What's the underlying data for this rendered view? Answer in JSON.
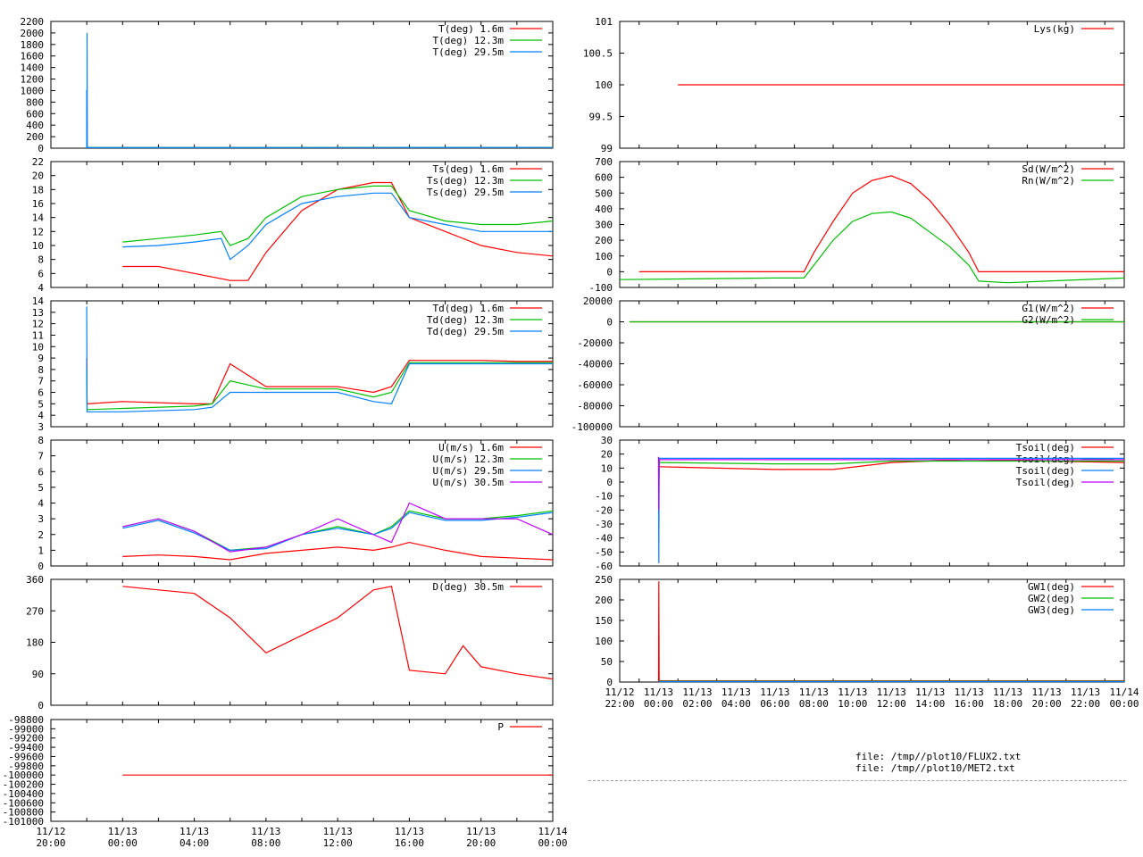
{
  "files": [
    "file: /tmp//plot10/FLUX2.txt",
    "file: /tmp//plot10/MET2.txt"
  ],
  "colors": {
    "red": "#ff0000",
    "green": "#00c000",
    "blue": "#0080ff",
    "purple": "#c000ff",
    "olive": "#a05000",
    "axis": "#000000"
  },
  "chart_data": [
    {
      "type": "line",
      "id": "T",
      "x_ticks": [
        "",
        "",
        "",
        "",
        "",
        "",
        ""
      ],
      "yticks": [
        "0",
        "200",
        "400",
        "600",
        "800",
        "1000",
        "1200",
        "1400",
        "1600",
        "1800",
        "2000",
        "2200"
      ],
      "ylim": [
        0,
        2200
      ],
      "xlim": [
        "11/12 20:00",
        "11/14 00:00"
      ],
      "series": [
        {
          "name": "T(deg)  1.6m",
          "color": "#ff0000",
          "x": [
            "11/12 22:00",
            "11/14 00:00"
          ],
          "values": [
            10,
            10
          ]
        },
        {
          "name": "T(deg) 12.3m",
          "color": "#00c000",
          "x": [
            "11/12 22:00",
            "11/14 00:00"
          ],
          "values": [
            12,
            12
          ]
        },
        {
          "name": "T(deg) 29.5m",
          "color": "#0080ff",
          "x": [
            "11/12 22:00",
            "11/12 22:00",
            "11/12 22:01",
            "11/12 22:01",
            "11/12 22:02",
            "11/14 00:00"
          ],
          "values": [
            0,
            1000,
            1000,
            2000,
            10,
            12
          ]
        }
      ]
    },
    {
      "type": "line",
      "id": "Ts",
      "yticks": [
        "4",
        "6",
        "8",
        "10",
        "12",
        "14",
        "16",
        "18",
        "20",
        "22"
      ],
      "ylim": [
        4,
        22
      ],
      "xlim": [
        "11/12 20:00",
        "11/14 00:00"
      ],
      "series": [
        {
          "name": "Ts(deg)  1.6m",
          "color": "#ff0000",
          "x": [
            "11/13 00:00",
            "11/13 02:00",
            "11/13 04:00",
            "11/13 06:00",
            "11/13 07:00",
            "11/13 08:00",
            "11/13 10:00",
            "11/13 12:00",
            "11/13 14:00",
            "11/13 15:00",
            "11/13 16:00",
            "11/13 18:00",
            "11/13 20:00",
            "11/13 22:00",
            "11/14 00:00"
          ],
          "values": [
            7,
            7,
            6,
            5,
            5,
            9,
            15,
            18,
            19,
            19,
            14,
            12,
            10,
            9,
            8.5
          ]
        },
        {
          "name": "Ts(deg) 12.3m",
          "color": "#00c000",
          "x": [
            "11/13 00:00",
            "11/13 02:00",
            "11/13 04:00",
            "11/13 05:30",
            "11/13 06:00",
            "11/13 07:00",
            "11/13 08:00",
            "11/13 10:00",
            "11/13 12:00",
            "11/13 14:00",
            "11/13 15:00",
            "11/13 16:00",
            "11/13 18:00",
            "11/13 20:00",
            "11/13 22:00",
            "11/14 00:00"
          ],
          "values": [
            10.5,
            11,
            11.5,
            12,
            10,
            11,
            14,
            17,
            18,
            18.5,
            18.5,
            15,
            13.5,
            13,
            13,
            13.5
          ]
        },
        {
          "name": "Ts(deg) 29.5m",
          "color": "#0080ff",
          "x": [
            "11/13 00:00",
            "11/13 02:00",
            "11/13 04:00",
            "11/13 05:30",
            "11/13 06:00",
            "11/13 07:00",
            "11/13 08:00",
            "11/13 10:00",
            "11/13 12:00",
            "11/13 14:00",
            "11/13 15:00",
            "11/13 16:00",
            "11/13 18:00",
            "11/13 20:00",
            "11/13 22:00",
            "11/14 00:00"
          ],
          "values": [
            9.8,
            10,
            10.5,
            11,
            8,
            10,
            13,
            16,
            17,
            17.5,
            17.5,
            14,
            13,
            12,
            12,
            12
          ]
        }
      ]
    },
    {
      "type": "line",
      "id": "Td",
      "yticks": [
        "3",
        "4",
        "5",
        "6",
        "7",
        "8",
        "9",
        "10",
        "11",
        "12",
        "13",
        "14"
      ],
      "ylim": [
        3,
        14
      ],
      "xlim": [
        "11/12 20:00",
        "11/14 00:00"
      ],
      "series": [
        {
          "name": "Td(deg)  1.6m",
          "color": "#ff0000",
          "x": [
            "11/12 22:00",
            "11/12 22:01",
            "11/13 00:00",
            "11/13 04:00",
            "11/13 05:00",
            "11/13 06:00",
            "11/13 08:00",
            "11/13 10:00",
            "11/13 12:00",
            "11/13 14:00",
            "11/13 15:00",
            "11/13 16:00",
            "11/13 18:00",
            "11/13 20:00",
            "11/13 22:00",
            "11/14 00:00"
          ],
          "values": [
            9,
            5,
            5.2,
            5,
            5,
            8.5,
            6.5,
            6.5,
            6.5,
            6,
            6.5,
            8.8,
            8.8,
            8.8,
            8.7,
            8.7
          ]
        },
        {
          "name": "Td(deg) 12.3m",
          "color": "#00c000",
          "x": [
            "11/12 22:00",
            "11/12 22:01",
            "11/13 00:00",
            "11/13 04:00",
            "11/13 05:00",
            "11/13 06:00",
            "11/13 08:00",
            "11/13 10:00",
            "11/13 12:00",
            "11/13 14:00",
            "11/13 15:00",
            "11/13 16:00",
            "11/13 18:00",
            "11/13 20:00",
            "11/13 22:00",
            "11/14 00:00"
          ],
          "values": [
            8,
            4.5,
            4.6,
            4.8,
            5,
            7,
            6.3,
            6.3,
            6.3,
            5.6,
            6,
            8.6,
            8.6,
            8.6,
            8.6,
            8.6
          ]
        },
        {
          "name": "Td(deg) 29.5m",
          "color": "#0080ff",
          "x": [
            "11/12 22:00",
            "11/12 22:01",
            "11/13 00:00",
            "11/13 04:00",
            "11/13 05:00",
            "11/13 06:00",
            "11/13 08:00",
            "11/13 10:00",
            "11/13 12:00",
            "11/13 14:00",
            "11/13 15:00",
            "11/13 16:00",
            "11/13 18:00",
            "11/13 20:00",
            "11/13 22:00",
            "11/14 00:00"
          ],
          "values": [
            13.5,
            4.3,
            4.3,
            4.5,
            4.7,
            6,
            6,
            6,
            6,
            5.2,
            5,
            8.5,
            8.5,
            8.5,
            8.5,
            8.5
          ]
        }
      ]
    },
    {
      "type": "line",
      "id": "U",
      "yticks": [
        "0",
        "1",
        "2",
        "3",
        "4",
        "5",
        "6",
        "7",
        "8"
      ],
      "ylim": [
        0,
        8
      ],
      "xlim": [
        "11/12 20:00",
        "11/14 00:00"
      ],
      "series": [
        {
          "name": "U(m/s)  1.6m",
          "color": "#ff0000",
          "x": [
            "11/13 00:00",
            "11/13 02:00",
            "11/13 04:00",
            "11/13 06:00",
            "11/13 08:00",
            "11/13 10:00",
            "11/13 12:00",
            "11/13 14:00",
            "11/13 15:00",
            "11/13 16:00",
            "11/13 18:00",
            "11/13 20:00",
            "11/13 22:00",
            "11/14 00:00"
          ],
          "values": [
            0.6,
            0.7,
            0.6,
            0.4,
            0.8,
            1.0,
            1.2,
            1.0,
            1.2,
            1.5,
            1.0,
            0.6,
            0.5,
            0.4
          ]
        },
        {
          "name": "U(m/s) 12.3m",
          "color": "#00c000",
          "x": [
            "11/13 00:00",
            "11/13 02:00",
            "11/13 04:00",
            "11/13 06:00",
            "11/13 08:00",
            "11/13 10:00",
            "11/13 12:00",
            "11/13 14:00",
            "11/13 15:00",
            "11/13 16:00",
            "11/13 18:00",
            "11/13 20:00",
            "11/13 22:00",
            "11/14 00:00"
          ],
          "values": [
            2.5,
            3.0,
            2.2,
            1.0,
            1.2,
            2.0,
            2.5,
            2.0,
            2.5,
            3.5,
            3.0,
            3.0,
            3.2,
            3.5
          ]
        },
        {
          "name": "U(m/s) 29.5m",
          "color": "#0080ff",
          "x": [
            "11/13 00:00",
            "11/13 02:00",
            "11/13 04:00",
            "11/13 06:00",
            "11/13 08:00",
            "11/13 10:00",
            "11/13 12:00",
            "11/13 14:00",
            "11/13 15:00",
            "11/13 16:00",
            "11/13 18:00",
            "11/13 20:00",
            "11/13 22:00",
            "11/14 00:00"
          ],
          "values": [
            2.4,
            2.9,
            2.1,
            1.0,
            1.1,
            2.0,
            2.4,
            2.0,
            2.4,
            3.4,
            2.9,
            2.9,
            3.1,
            3.4
          ]
        },
        {
          "name": "U(m/s) 30.5m",
          "color": "#c000ff",
          "x": [
            "11/13 00:00",
            "11/13 02:00",
            "11/13 04:00",
            "11/13 06:00",
            "11/13 08:00",
            "11/13 10:00",
            "11/13 12:00",
            "11/13 14:00",
            "11/13 15:00",
            "11/13 16:00",
            "11/13 18:00",
            "11/13 20:00",
            "11/13 22:00",
            "11/14 00:00"
          ],
          "values": [
            2.5,
            3.0,
            2.2,
            0.9,
            1.2,
            2.0,
            3.0,
            2.0,
            1.5,
            4.0,
            3.0,
            3.0,
            3.0,
            2.0
          ]
        }
      ]
    },
    {
      "type": "line",
      "id": "D",
      "yticks": [
        "0",
        "90",
        "180",
        "270",
        "360"
      ],
      "ylim": [
        0,
        360
      ],
      "xlim": [
        "11/12 20:00",
        "11/14 00:00"
      ],
      "series": [
        {
          "name": "D(deg)  30.5m",
          "color": "#ff0000",
          "x": [
            "11/13 00:00",
            "11/13 02:00",
            "11/13 04:00",
            "11/13 06:00",
            "11/13 08:00",
            "11/13 10:00",
            "11/13 12:00",
            "11/13 14:00",
            "11/13 15:00",
            "11/13 16:00",
            "11/13 18:00",
            "11/13 19:00",
            "11/13 20:00",
            "11/13 22:00",
            "11/14 00:00"
          ],
          "values": [
            340,
            330,
            320,
            250,
            150,
            200,
            250,
            330,
            340,
            100,
            90,
            170,
            110,
            90,
            75
          ]
        }
      ]
    },
    {
      "type": "line",
      "id": "P",
      "yticks": [
        "-101000",
        "-100800",
        "-100600",
        "-100400",
        "-100200",
        "-100000",
        "-99800",
        "-99600",
        "-99400",
        "-99200",
        "-99000",
        "-98800"
      ],
      "ylim": [
        -101000,
        -98800
      ],
      "xlim": [
        "11/12 20:00",
        "11/14 00:00"
      ],
      "xticks": [
        "11/12\n20:00",
        "11/13\n00:00",
        "11/13\n04:00",
        "11/13\n08:00",
        "11/13\n12:00",
        "11/13\n16:00",
        "11/13\n20:00",
        "11/14\n00:00"
      ],
      "series": [
        {
          "name": "P",
          "color": "#ff0000",
          "x": [
            "11/13 00:00",
            "11/14 00:00"
          ],
          "values": [
            -100000,
            -100000
          ]
        }
      ]
    },
    {
      "type": "line",
      "id": "Lys",
      "yticks": [
        "99",
        "99.5",
        "100",
        "100.5",
        "101"
      ],
      "ylim": [
        99,
        101
      ],
      "xlim": [
        "11/12 22:00",
        "11/14 00:00"
      ],
      "series": [
        {
          "name": "Lys(kg)",
          "color": "#ff0000",
          "x": [
            "11/13 01:00",
            "11/14 00:00"
          ],
          "values": [
            100,
            100
          ]
        }
      ]
    },
    {
      "type": "line",
      "id": "Sd",
      "yticks": [
        "-100",
        "0",
        "100",
        "200",
        "300",
        "400",
        "500",
        "600",
        "700"
      ],
      "ylim": [
        -100,
        700
      ],
      "xlim": [
        "11/12 22:00",
        "11/14 00:00"
      ],
      "series": [
        {
          "name": "Sd(W/m^2)",
          "color": "#ff0000",
          "x": [
            "11/12 23:00",
            "11/13 07:30",
            "11/13 08:00",
            "11/13 09:00",
            "11/13 10:00",
            "11/13 11:00",
            "11/13 12:00",
            "11/13 13:00",
            "11/13 14:00",
            "11/13 15:00",
            "11/13 16:00",
            "11/13 16:30",
            "11/14 00:00"
          ],
          "values": [
            0,
            0,
            120,
            320,
            500,
            580,
            610,
            560,
            450,
            300,
            120,
            0,
            0
          ]
        },
        {
          "name": "Rn(W/m^2)",
          "color": "#00c000",
          "x": [
            "11/12 22:00",
            "11/13 06:00",
            "11/13 07:30",
            "11/13 08:00",
            "11/13 09:00",
            "11/13 10:00",
            "11/13 11:00",
            "11/13 12:00",
            "11/13 13:00",
            "11/13 14:00",
            "11/13 15:00",
            "11/13 16:00",
            "11/13 16:30",
            "11/13 18:00",
            "11/13 20:00",
            "11/14 00:00"
          ],
          "values": [
            -50,
            -40,
            -40,
            40,
            200,
            320,
            370,
            380,
            340,
            250,
            160,
            40,
            -60,
            -70,
            -60,
            -40
          ]
        }
      ]
    },
    {
      "type": "line",
      "id": "G",
      "yticks": [
        "-100000",
        "-80000",
        "-60000",
        "-40000",
        "-20000",
        "0",
        "20000"
      ],
      "ylim": [
        -100000,
        20000
      ],
      "xlim": [
        "11/12 22:00",
        "11/14 00:00"
      ],
      "series": [
        {
          "name": "G1(W/m^2)",
          "color": "#ff0000",
          "x": [
            "11/12 22:30",
            "11/14 00:00"
          ],
          "values": [
            0,
            0
          ]
        },
        {
          "name": "G2(W/m^2)",
          "color": "#00c000",
          "x": [
            "11/12 22:30",
            "11/14 00:00"
          ],
          "values": [
            0,
            0
          ]
        }
      ]
    },
    {
      "type": "line",
      "id": "Tsoil",
      "yticks": [
        "-60",
        "-50",
        "-40",
        "-30",
        "-20",
        "-10",
        "0",
        "10",
        "20",
        "30"
      ],
      "ylim": [
        -60,
        30
      ],
      "xlim": [
        "11/12 22:00",
        "11/14 00:00"
      ],
      "series": [
        {
          "name": "Tsoil(deg)",
          "color": "#ff0000",
          "x": [
            "11/13 00:00",
            "11/13 06:00",
            "11/13 09:00",
            "11/13 12:00",
            "11/13 16:00",
            "11/14 00:00"
          ],
          "values": [
            11,
            9,
            9,
            14,
            16,
            14
          ]
        },
        {
          "name": "Tsoil(deg)",
          "color": "#00c000",
          "x": [
            "11/13 00:00",
            "11/13 06:00",
            "11/13 09:00",
            "11/13 12:00",
            "11/13 16:00",
            "11/14 00:00"
          ],
          "values": [
            14,
            13,
            13,
            15,
            15,
            15
          ]
        },
        {
          "name": "Tsoil(deg)",
          "color": "#0080ff",
          "x": [
            "11/13 00:00",
            "11/13 00:01",
            "11/13 00:02",
            "11/14 00:00"
          ],
          "values": [
            10,
            -58,
            17,
            17
          ]
        },
        {
          "name": "Tsoil(deg)",
          "color": "#c000ff",
          "x": [
            "11/13 00:00",
            "11/13 00:01",
            "11/13 00:02",
            "11/14 00:00"
          ],
          "values": [
            18,
            -20,
            16,
            16
          ]
        }
      ]
    },
    {
      "type": "line",
      "id": "GW",
      "yticks": [
        "0",
        "50",
        "100",
        "150",
        "200",
        "250"
      ],
      "ylim": [
        0,
        250
      ],
      "xlim": [
        "11/12 22:00",
        "11/14 00:00"
      ],
      "xticks": [
        "11/12\n22:00",
        "11/13\n00:00",
        "11/13\n02:00",
        "11/13\n04:00",
        "11/13\n06:00",
        "11/13\n08:00",
        "11/13\n10:00",
        "11/13\n12:00",
        "11/13\n14:00",
        "11/13\n16:00",
        "11/13\n18:00",
        "11/13\n20:00",
        "11/13\n22:00",
        "11/14\n00:00"
      ],
      "series": [
        {
          "name": "GW1(deg)",
          "color": "#ff0000",
          "x": [
            "11/13 00:00",
            "11/13 00:01",
            "11/13 00:02",
            "11/14 00:00"
          ],
          "values": [
            0,
            245,
            3,
            3
          ]
        },
        {
          "name": "GW2(deg)",
          "color": "#00c000",
          "x": [
            "11/13 00:00",
            "11/14 00:00"
          ],
          "values": [
            2,
            2
          ]
        },
        {
          "name": "GW3(deg)",
          "color": "#0080ff",
          "x": [
            "11/13 00:00",
            "11/14 00:00"
          ],
          "values": [
            1,
            1
          ]
        }
      ]
    }
  ]
}
